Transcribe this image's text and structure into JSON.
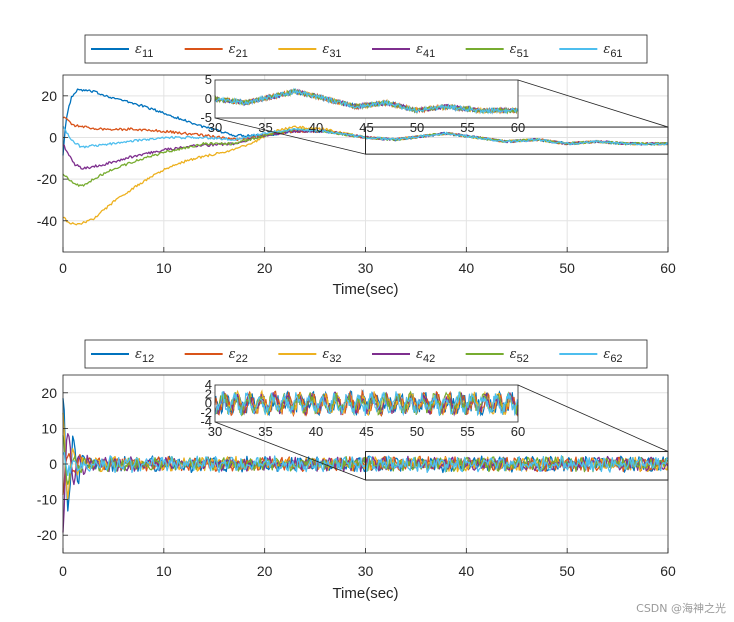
{
  "watermark": "CSDN @海神之光",
  "colors": [
    "#0072BD",
    "#D95319",
    "#EDB120",
    "#7E2F8E",
    "#77AC30",
    "#4DBEEE"
  ],
  "chart_data": [
    {
      "type": "line",
      "xlabel": "Time(sec)",
      "ylabel": "",
      "xlim": [
        0,
        60
      ],
      "ylim": [
        -55,
        30
      ],
      "xticks": [
        "0",
        "10",
        "20",
        "30",
        "40",
        "50",
        "60"
      ],
      "yticks": [
        "20",
        "0",
        "-20",
        "-40"
      ],
      "grid": true,
      "legend_position": "top",
      "legend": [
        {
          "sym": "ε",
          "sub": "11"
        },
        {
          "sym": "ε",
          "sub": "21"
        },
        {
          "sym": "ε",
          "sub": "31"
        },
        {
          "sym": "ε",
          "sub": "41"
        },
        {
          "sym": "ε",
          "sub": "51"
        },
        {
          "sym": "ε",
          "sub": "61"
        }
      ],
      "series": [
        {
          "name": "ε11",
          "noise": 0.6,
          "points": [
            [
              0,
              -8
            ],
            [
              0.3,
              8
            ],
            [
              0.8,
              19
            ],
            [
              1.5,
              23
            ],
            [
              3,
              22
            ],
            [
              5,
              19
            ],
            [
              8,
              15
            ],
            [
              11,
              10
            ],
            [
              14,
              5
            ],
            [
              17,
              1
            ],
            [
              20,
              1
            ],
            [
              23,
              3
            ],
            [
              26,
              3
            ],
            [
              30,
              0
            ]
          ]
        },
        {
          "name": "ε21",
          "noise": 0.6,
          "points": [
            [
              0,
              10
            ],
            [
              0.5,
              8
            ],
            [
              1,
              6
            ],
            [
              2,
              5
            ],
            [
              4,
              4
            ],
            [
              7,
              4
            ],
            [
              10,
              3
            ],
            [
              14,
              1
            ],
            [
              17,
              -1
            ],
            [
              20,
              1
            ],
            [
              23,
              3
            ],
            [
              26,
              3
            ],
            [
              30,
              0
            ]
          ]
        },
        {
          "name": "ε31",
          "noise": 0.6,
          "points": [
            [
              0,
              -38
            ],
            [
              0.5,
              -41
            ],
            [
              1.5,
              -42
            ],
            [
              3,
              -39
            ],
            [
              5,
              -31
            ],
            [
              8,
              -21
            ],
            [
              11,
              -13
            ],
            [
              14,
              -9
            ],
            [
              17,
              -6
            ],
            [
              19,
              -2
            ],
            [
              21,
              3
            ],
            [
              23,
              5
            ],
            [
              26,
              4
            ],
            [
              30,
              0
            ]
          ]
        },
        {
          "name": "ε41",
          "noise": 0.6,
          "points": [
            [
              0,
              -3
            ],
            [
              0.5,
              -8
            ],
            [
              1.2,
              -13
            ],
            [
              2,
              -15
            ],
            [
              4,
              -13
            ],
            [
              7,
              -9
            ],
            [
              10,
              -6
            ],
            [
              13,
              -4
            ],
            [
              17,
              -3
            ],
            [
              20,
              1
            ],
            [
              23,
              3
            ],
            [
              26,
              3
            ],
            [
              30,
              0
            ]
          ]
        },
        {
          "name": "ε51",
          "noise": 0.6,
          "points": [
            [
              0,
              -17
            ],
            [
              0.5,
              -20
            ],
            [
              1,
              -22
            ],
            [
              1.8,
              -23.5
            ],
            [
              3,
              -20
            ],
            [
              5,
              -15
            ],
            [
              8,
              -10
            ],
            [
              11,
              -6
            ],
            [
              14,
              -3
            ],
            [
              17,
              -3
            ],
            [
              20,
              1
            ],
            [
              23,
              4
            ],
            [
              26,
              3
            ],
            [
              30,
              0
            ]
          ]
        },
        {
          "name": "ε61",
          "noise": 0.6,
          "points": [
            [
              0,
              6
            ],
            [
              0.4,
              2
            ],
            [
              1,
              -2
            ],
            [
              1.8,
              -4.5
            ],
            [
              3,
              -4
            ],
            [
              5,
              -3
            ],
            [
              8,
              -1
            ],
            [
              11,
              0
            ],
            [
              14,
              0
            ],
            [
              17,
              -1
            ],
            [
              20,
              2
            ],
            [
              23,
              4
            ],
            [
              26,
              3
            ],
            [
              30,
              0
            ]
          ]
        }
      ],
      "tail": {
        "from": 30,
        "to": 60,
        "points": [
          [
            30,
            0
          ],
          [
            33,
            -1
          ],
          [
            38,
            2
          ],
          [
            41,
            0
          ],
          [
            44,
            -2
          ],
          [
            47,
            -1
          ],
          [
            50,
            -3
          ],
          [
            53,
            -2
          ],
          [
            56,
            -3
          ],
          [
            60,
            -3
          ]
        ],
        "noise": 0.6
      },
      "inset": {
        "xlim": [
          30,
          60
        ],
        "ylim": [
          -5,
          5
        ],
        "xticks": [
          "30",
          "35",
          "40",
          "45",
          "50",
          "55",
          "60"
        ],
        "yticks": [
          "5",
          "0",
          "-5"
        ],
        "zoom_box_ylim": [
          -8,
          5
        ]
      }
    },
    {
      "type": "line",
      "xlabel": "Time(sec)",
      "ylabel": "",
      "xlim": [
        0,
        60
      ],
      "ylim": [
        -25,
        25
      ],
      "xticks": [
        "0",
        "10",
        "20",
        "30",
        "40",
        "50",
        "60"
      ],
      "yticks": [
        "20",
        "10",
        "0",
        "-10",
        "-20"
      ],
      "grid": true,
      "legend_position": "top",
      "legend": [
        {
          "sym": "ε",
          "sub": "12"
        },
        {
          "sym": "ε",
          "sub": "22"
        },
        {
          "sym": "ε",
          "sub": "32"
        },
        {
          "sym": "ε",
          "sub": "42"
        },
        {
          "sym": "ε",
          "sub": "52"
        },
        {
          "sym": "ε",
          "sub": "62"
        }
      ],
      "series": [
        {
          "name": "ε12",
          "initial": 20,
          "decay": 0.9,
          "noise": 1.6
        },
        {
          "name": "ε22",
          "initial": -8,
          "decay": 0.8,
          "noise": 1.4
        },
        {
          "name": "ε32",
          "initial": 15,
          "decay": 0.8,
          "noise": 1.4
        },
        {
          "name": "ε42",
          "initial": -18,
          "decay": 0.8,
          "noise": 1.4
        },
        {
          "name": "ε52",
          "initial": 10,
          "decay": 0.8,
          "noise": 1.4
        },
        {
          "name": "ε62",
          "initial": 5,
          "decay": 0.8,
          "noise": 1.6
        }
      ],
      "inset": {
        "xlim": [
          30,
          60
        ],
        "ylim": [
          -4,
          4
        ],
        "xticks": [
          "30",
          "35",
          "40",
          "45",
          "50",
          "55",
          "60"
        ],
        "yticks": [
          "4",
          "2",
          "0",
          "-2",
          "-4"
        ],
        "zoom_box_ylim": [
          -4.5,
          3.5
        ]
      }
    }
  ]
}
